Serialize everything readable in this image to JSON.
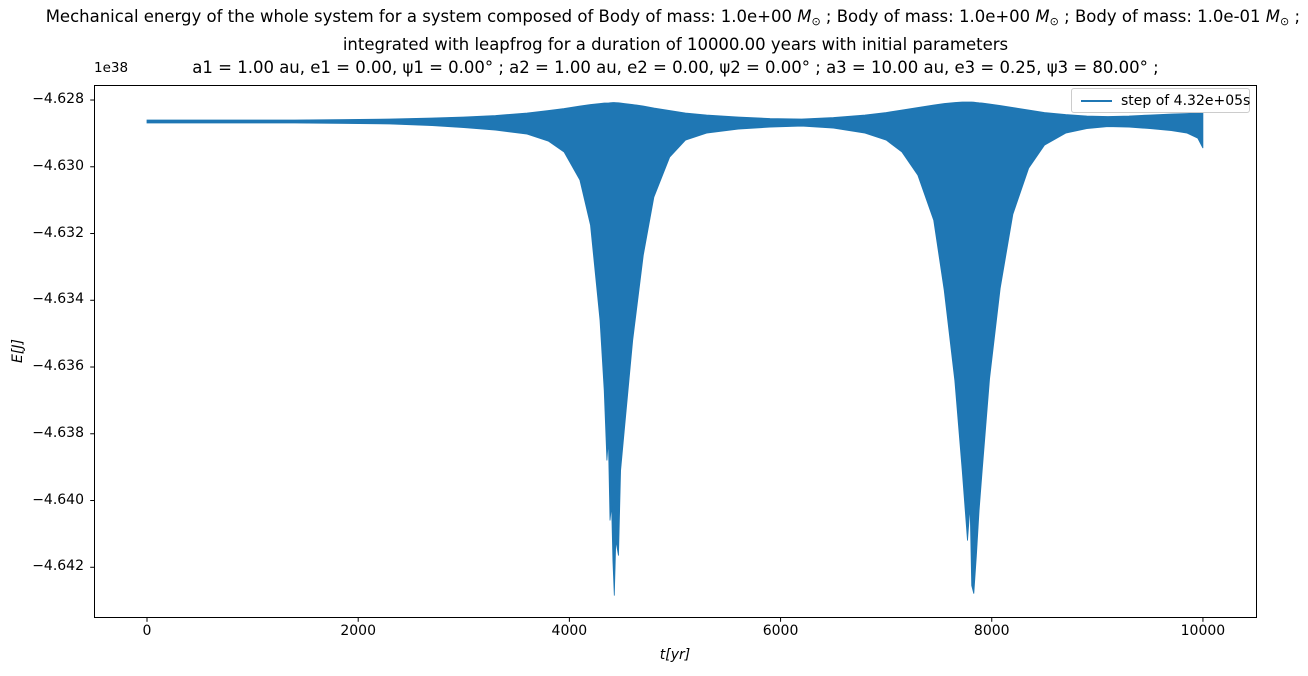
{
  "figure": {
    "title_line1_prefix": "Mechanical energy of the whole system for a system composed of ",
    "bodies": [
      {
        "text": "Body of mass: 1.0e+00 "
      },
      {
        "text": "Body of mass: 1.0e+00 "
      },
      {
        "text": "Body of mass: 1.0e-01 "
      }
    ],
    "mass_symbol": "M",
    "mass_subscript": "⊙",
    "body_separator": " ; ",
    "title_line2": "integrated with leapfrog for a duration of 10000.00 years with initial parameters",
    "title_line3": "a1 = 1.00 au, e1 = 0.00, ψ1 = 0.00° ; a2 = 1.00 au, e2 = 0.00, ψ2 = 0.00° ; a3 = 10.00 au, e3 = 0.25, ψ3 = 80.00° ;"
  },
  "chart_data": {
    "type": "line",
    "xlabel": "t[yr]",
    "ylabel": "E[J]",
    "y_offset_text": "1e38",
    "xlim": [
      -502,
      10512
    ],
    "ylim": [
      -4.64352,
      -4.62755
    ],
    "xticks": [
      0,
      2000,
      4000,
      6000,
      8000,
      10000
    ],
    "yticks": [
      -4.628,
      -4.63,
      -4.632,
      -4.634,
      -4.636,
      -4.638,
      -4.64,
      -4.642
    ],
    "ytick_decimals": 3,
    "grid": false,
    "legend": {
      "label": "step of 4.32e+05s",
      "location": "upper right"
    },
    "series_color": "#1f77b4",
    "y_unit_scale": "1e38",
    "envelope": {
      "t": [
        0,
        400,
        900,
        1400,
        1900,
        2300,
        2700,
        3000,
        3300,
        3600,
        3800,
        3950,
        4100,
        4200,
        4290,
        4330,
        4355,
        4370,
        4385,
        4400,
        4412,
        4425,
        4440,
        4465,
        4485,
        4520,
        4600,
        4700,
        4800,
        4950,
        5100,
        5300,
        5600,
        5900,
        6200,
        6500,
        6800,
        7000,
        7150,
        7300,
        7450,
        7550,
        7650,
        7720,
        7770,
        7795,
        7810,
        7830,
        7855,
        7880,
        7910,
        7980,
        8080,
        8200,
        8350,
        8500,
        8700,
        8900,
        9100,
        9300,
        9500,
        9700,
        9850,
        9950,
        10000
      ],
      "upper": [
        -4.6286,
        -4.6286,
        -4.6286,
        -4.6286,
        -4.628585,
        -4.62857,
        -4.62854,
        -4.62851,
        -4.628465,
        -4.62839,
        -4.628315,
        -4.628255,
        -4.62818,
        -4.628135,
        -4.628105,
        -4.62809,
        -4.62809,
        -4.62809,
        -4.628084,
        -4.628078,
        -4.628075,
        -4.628075,
        -4.628078,
        -4.628084,
        -4.62809,
        -4.628105,
        -4.628135,
        -4.62818,
        -4.62824,
        -4.628315,
        -4.62839,
        -4.62845,
        -4.62851,
        -4.628555,
        -4.62857,
        -4.628525,
        -4.62845,
        -4.628375,
        -4.6283,
        -4.628225,
        -4.62815,
        -4.628105,
        -4.628075,
        -4.62806,
        -4.62806,
        -4.62806,
        -4.62806,
        -4.628066,
        -4.628075,
        -4.628084,
        -4.62809,
        -4.62812,
        -4.628165,
        -4.628225,
        -4.6283,
        -4.628375,
        -4.628435,
        -4.62848,
        -4.628495,
        -4.62848,
        -4.62845,
        -4.62842,
        -4.628405,
        -4.62839,
        -4.62839
      ],
      "lower": [
        -4.62869,
        -4.62869,
        -4.62869,
        -4.62869,
        -4.628705,
        -4.62872,
        -4.628765,
        -4.628825,
        -4.6289,
        -4.62902,
        -4.62923,
        -4.62956,
        -4.6304,
        -4.63175,
        -4.6346,
        -4.6367,
        -4.6388,
        -4.6382,
        -4.6406,
        -4.64015,
        -4.6418,
        -4.64285,
        -4.6412,
        -4.64165,
        -4.6391,
        -4.6379,
        -4.6352,
        -4.63265,
        -4.63091,
        -4.62971,
        -4.6292,
        -4.62899,
        -4.62887,
        -4.62881,
        -4.62878,
        -4.62884,
        -4.62899,
        -4.6292,
        -4.62956,
        -4.63025,
        -4.6316,
        -4.6337,
        -4.6364,
        -4.6391,
        -4.6412,
        -4.64015,
        -4.64255,
        -4.64279,
        -4.64165,
        -4.6403,
        -4.6391,
        -4.63634,
        -4.63364,
        -4.63142,
        -4.63004,
        -4.62935,
        -4.62899,
        -4.628855,
        -4.628795,
        -4.62881,
        -4.628855,
        -4.628915,
        -4.62899,
        -4.62914,
        -4.62944
      ]
    }
  }
}
